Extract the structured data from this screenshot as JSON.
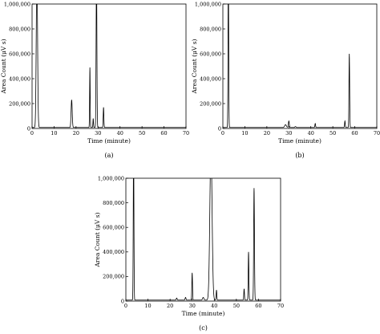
{
  "chart_data": [
    {
      "panel_label": "(a)",
      "type": "line",
      "xlabel": "Time (minute)",
      "ylabel": "Area Count (μV s)",
      "xlim": [
        0,
        70
      ],
      "ylim": [
        0,
        1000000
      ],
      "xticks": [
        "0",
        "10",
        "20",
        "30",
        "40",
        "50",
        "60",
        "70"
      ],
      "yticks": [
        "0",
        "200,000",
        "400,000",
        "600,000",
        "800,000",
        "1,000,000"
      ],
      "ytick_values": [
        0,
        200000,
        400000,
        600000,
        800000,
        1000000
      ],
      "baseline": 8000,
      "peaks": [
        {
          "x": 2.2,
          "y": 1000000,
          "width": 0.6
        },
        {
          "x": 18.0,
          "y": 230000,
          "width": 0.5
        },
        {
          "x": 26.3,
          "y": 490000,
          "width": 0.25
        },
        {
          "x": 27.8,
          "y": 80000,
          "width": 0.25
        },
        {
          "x": 29.3,
          "y": 1000000,
          "width": 0.35
        },
        {
          "x": 32.5,
          "y": 170000,
          "width": 0.3
        }
      ]
    },
    {
      "panel_label": "(b)",
      "type": "line",
      "xlabel": "Time (minute)",
      "ylabel": "Area Count (μV s)",
      "xlim": [
        0,
        70
      ],
      "ylim": [
        0,
        1000000
      ],
      "xticks": [
        "0",
        "10",
        "20",
        "30",
        "40",
        "50",
        "60",
        "70"
      ],
      "yticks": [
        "0",
        "200,000",
        "400,000",
        "600,000",
        "800,000",
        "1,000,000"
      ],
      "ytick_values": [
        0,
        200000,
        400000,
        600000,
        800000,
        1000000
      ],
      "baseline": 8000,
      "peaks": [
        {
          "x": 2.5,
          "y": 1000000,
          "width": 0.3
        },
        {
          "x": 28.5,
          "y": 30000,
          "width": 0.8
        },
        {
          "x": 30.0,
          "y": 60000,
          "width": 0.4
        },
        {
          "x": 33.0,
          "y": 15000,
          "width": 0.5
        },
        {
          "x": 42.0,
          "y": 40000,
          "width": 0.3
        },
        {
          "x": 55.5,
          "y": 60000,
          "width": 0.3
        },
        {
          "x": 57.5,
          "y": 600000,
          "width": 0.3
        }
      ]
    },
    {
      "panel_label": "(c)",
      "type": "line",
      "xlabel": "Time (minute)",
      "ylabel": "Area Count (μV s)",
      "xlim": [
        0,
        70
      ],
      "ylim": [
        0,
        1000000
      ],
      "xticks": [
        "0",
        "10",
        "20",
        "30",
        "40",
        "50",
        "60",
        "70"
      ],
      "yticks": [
        "0",
        "200,000",
        "400,000",
        "600,000",
        "800,000",
        "1,000,000"
      ],
      "ytick_values": [
        0,
        200000,
        400000,
        600000,
        800000,
        1000000
      ],
      "baseline": 8000,
      "peaks": [
        {
          "x": 3.5,
          "y": 1000000,
          "width": 0.3
        },
        {
          "x": 23.0,
          "y": 25000,
          "width": 0.4
        },
        {
          "x": 27.0,
          "y": 30000,
          "width": 0.4
        },
        {
          "x": 30.0,
          "y": 230000,
          "width": 0.3
        },
        {
          "x": 35.0,
          "y": 30000,
          "width": 0.6
        },
        {
          "x": 38.5,
          "y": 1000000,
          "width": 1.0
        },
        {
          "x": 41.0,
          "y": 90000,
          "width": 0.3
        },
        {
          "x": 53.5,
          "y": 100000,
          "width": 0.3
        },
        {
          "x": 55.5,
          "y": 400000,
          "width": 0.3
        },
        {
          "x": 58.0,
          "y": 920000,
          "width": 0.35
        }
      ]
    }
  ]
}
